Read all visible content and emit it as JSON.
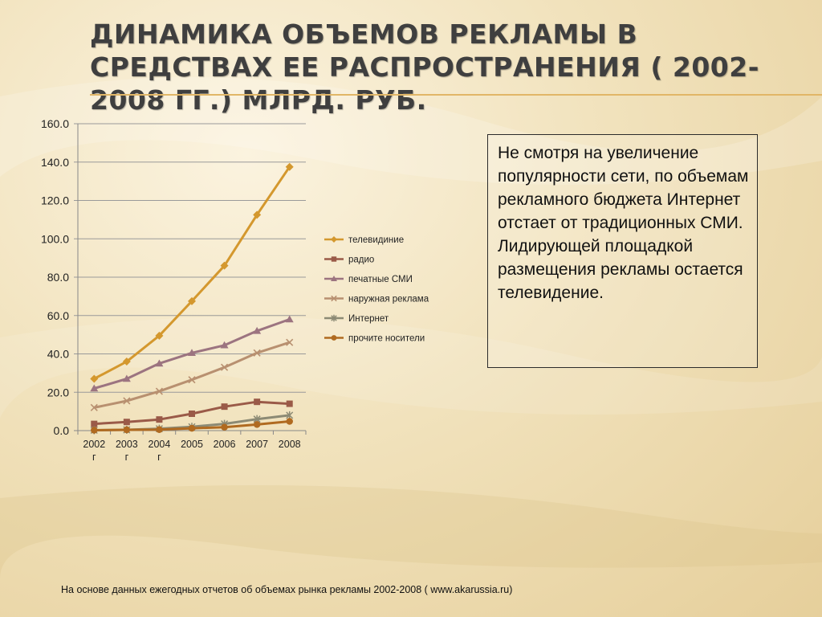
{
  "slide": {
    "title": "Динамика объемов рекламы в средствах ее распространения ( 2002-2008 гг.) млрд. руб.",
    "note": "Не смотря на увеличение популярности сети, по объемам рекламного бюджета Интернет отстает от традиционных СМИ.   Лидирующей площадкой размещения рекламы остается телевидение.",
    "source": "На основе данных ежегодных отчетов  об объемах рынка рекламы 2002-2008 ( www.akarussia.ru)"
  },
  "chart_data": {
    "type": "line",
    "title": "",
    "xlabel": "",
    "ylabel": "",
    "categories": [
      [
        "2002",
        "г"
      ],
      [
        "2003",
        "г"
      ],
      [
        "2004",
        "г"
      ],
      [
        "2005"
      ],
      [
        "2006"
      ],
      [
        "2007"
      ],
      [
        "2008"
      ]
    ],
    "ylim": [
      0,
      160
    ],
    "yticks": [
      "0.0",
      "20.0",
      "40.0",
      "60.0",
      "80.0",
      "100.0",
      "120.0",
      "140.0",
      "160.0"
    ],
    "grid": "horizontal",
    "legend_position": "right",
    "series": [
      {
        "name": "телевидиние",
        "color": "#d4982e",
        "marker": "diamond",
        "values": [
          27,
          36,
          49.5,
          67.5,
          86,
          112.5,
          137.5
        ]
      },
      {
        "name": "радио",
        "color": "#9a5a48",
        "marker": "square",
        "values": [
          3.5,
          4.5,
          5.8,
          8.8,
          12.5,
          15,
          14
        ]
      },
      {
        "name": "печатные СМИ",
        "color": "#9c7480",
        "marker": "triangle",
        "values": [
          22,
          27,
          35,
          40.5,
          44.5,
          52,
          58
        ]
      },
      {
        "name": "наружная реклама",
        "color": "#b89070",
        "marker": "x",
        "values": [
          12,
          15.5,
          20.5,
          26.5,
          33,
          40.5,
          46
        ]
      },
      {
        "name": "Интернет",
        "color": "#8c8a74",
        "marker": "star",
        "values": [
          0.2,
          0.4,
          1,
          2,
          3.5,
          6,
          8
        ]
      },
      {
        "name": "прочите носители",
        "color": "#b06a20",
        "marker": "circle",
        "values": [
          0.2,
          0.4,
          0.5,
          1.2,
          1.8,
          3.2,
          4.8
        ]
      }
    ]
  }
}
